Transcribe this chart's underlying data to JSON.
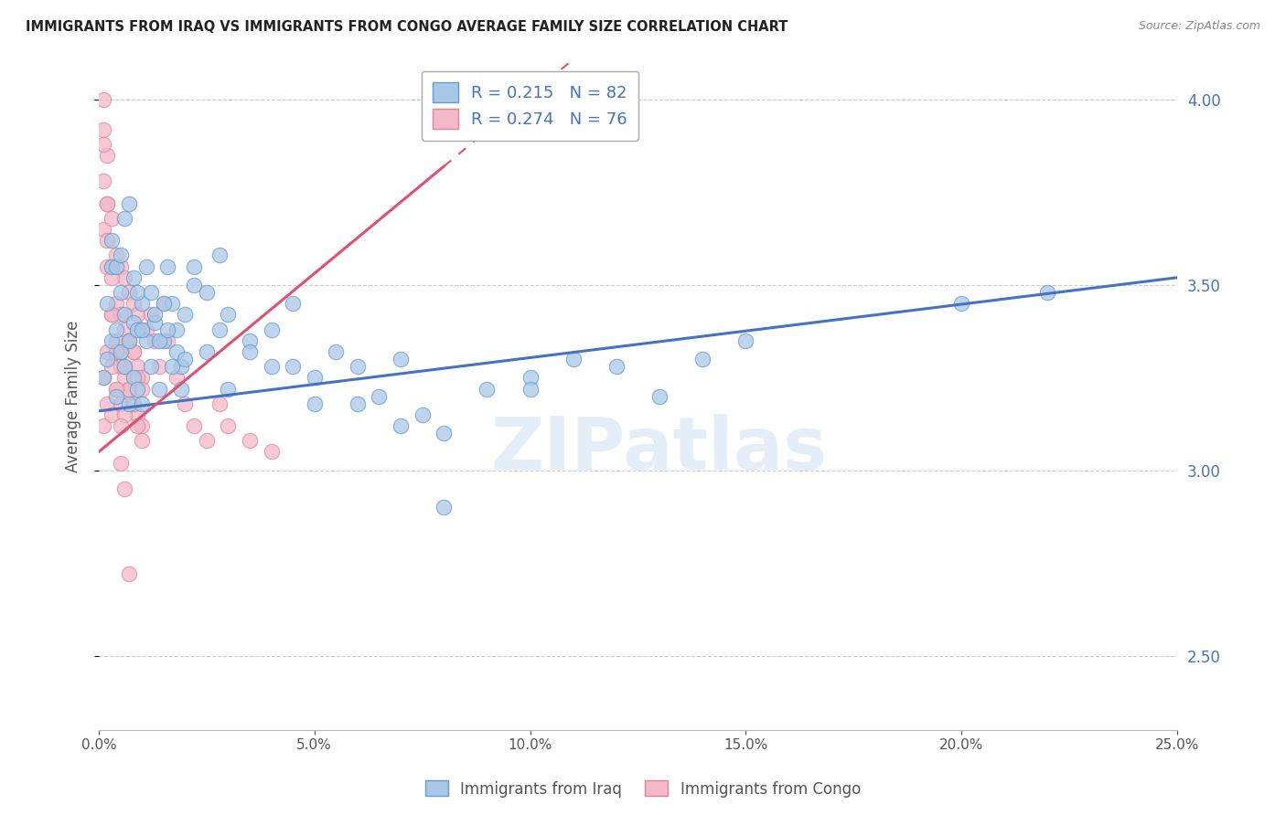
{
  "title": "IMMIGRANTS FROM IRAQ VS IMMIGRANTS FROM CONGO AVERAGE FAMILY SIZE CORRELATION CHART",
  "source": "Source: ZipAtlas.com",
  "ylabel": "Average Family Size",
  "xlim": [
    0.0,
    0.25
  ],
  "ylim": [
    2.3,
    4.1
  ],
  "right_yticks": [
    2.5,
    3.0,
    3.5,
    4.0
  ],
  "iraq_R": 0.215,
  "iraq_N": 82,
  "congo_R": 0.274,
  "congo_N": 76,
  "iraq_color": "#a8c8e8",
  "iraq_edge_color": "#6699cc",
  "iraq_line_color": "#4472c4",
  "congo_color": "#f4b8c8",
  "congo_edge_color": "#dd8899",
  "congo_line_color": "#e05070",
  "legend_label_iraq": "Immigrants from Iraq",
  "legend_label_congo": "Immigrants from Congo",
  "iraq_trend_x0": 0.0,
  "iraq_trend_y0": 3.16,
  "iraq_trend_x1": 0.25,
  "iraq_trend_y1": 3.52,
  "congo_trend_x0": 0.0,
  "congo_trend_y0": 3.05,
  "congo_trend_x1": 0.08,
  "congo_trend_y1": 3.82,
  "iraq_x": [
    0.001,
    0.002,
    0.002,
    0.003,
    0.003,
    0.004,
    0.004,
    0.005,
    0.005,
    0.006,
    0.006,
    0.007,
    0.007,
    0.008,
    0.008,
    0.009,
    0.009,
    0.01,
    0.01,
    0.011,
    0.012,
    0.013,
    0.014,
    0.015,
    0.016,
    0.017,
    0.018,
    0.019,
    0.02,
    0.022,
    0.025,
    0.028,
    0.03,
    0.035,
    0.04,
    0.045,
    0.05,
    0.055,
    0.06,
    0.065,
    0.07,
    0.075,
    0.08,
    0.09,
    0.1,
    0.11,
    0.12,
    0.13,
    0.14,
    0.15,
    0.003,
    0.004,
    0.005,
    0.006,
    0.007,
    0.008,
    0.009,
    0.01,
    0.011,
    0.012,
    0.013,
    0.014,
    0.015,
    0.016,
    0.017,
    0.018,
    0.019,
    0.02,
    0.022,
    0.025,
    0.028,
    0.03,
    0.035,
    0.04,
    0.045,
    0.05,
    0.06,
    0.07,
    0.08,
    0.1,
    0.22,
    0.2
  ],
  "iraq_y": [
    3.25,
    3.3,
    3.45,
    3.35,
    3.55,
    3.38,
    3.2,
    3.32,
    3.48,
    3.28,
    3.42,
    3.35,
    3.18,
    3.4,
    3.25,
    3.38,
    3.22,
    3.45,
    3.18,
    3.35,
    3.28,
    3.4,
    3.22,
    3.35,
    3.55,
    3.45,
    3.38,
    3.28,
    3.42,
    3.5,
    3.32,
    3.58,
    3.22,
    3.35,
    3.28,
    3.45,
    3.18,
    3.32,
    3.28,
    3.2,
    3.3,
    3.15,
    3.1,
    3.22,
    3.25,
    3.3,
    3.28,
    3.2,
    3.3,
    3.35,
    3.62,
    3.55,
    3.58,
    3.68,
    3.72,
    3.52,
    3.48,
    3.38,
    3.55,
    3.48,
    3.42,
    3.35,
    3.45,
    3.38,
    3.28,
    3.32,
    3.22,
    3.3,
    3.55,
    3.48,
    3.38,
    3.42,
    3.32,
    3.38,
    3.28,
    3.25,
    3.18,
    3.12,
    2.9,
    3.22,
    3.48,
    3.45
  ],
  "congo_x": [
    0.001,
    0.001,
    0.001,
    0.002,
    0.002,
    0.002,
    0.003,
    0.003,
    0.003,
    0.004,
    0.004,
    0.004,
    0.005,
    0.005,
    0.005,
    0.006,
    0.006,
    0.006,
    0.007,
    0.007,
    0.007,
    0.008,
    0.008,
    0.008,
    0.009,
    0.009,
    0.009,
    0.01,
    0.01,
    0.01,
    0.001,
    0.001,
    0.002,
    0.002,
    0.003,
    0.003,
    0.004,
    0.004,
    0.005,
    0.005,
    0.006,
    0.006,
    0.007,
    0.007,
    0.008,
    0.008,
    0.009,
    0.009,
    0.01,
    0.01,
    0.011,
    0.012,
    0.013,
    0.014,
    0.015,
    0.016,
    0.018,
    0.02,
    0.022,
    0.025,
    0.028,
    0.03,
    0.035,
    0.04,
    0.001,
    0.001,
    0.002,
    0.002,
    0.003,
    0.003,
    0.004,
    0.004,
    0.005,
    0.005,
    0.006,
    0.007
  ],
  "congo_y": [
    3.92,
    3.78,
    3.65,
    3.85,
    3.72,
    3.55,
    3.68,
    3.55,
    3.42,
    3.58,
    3.45,
    3.32,
    3.55,
    3.42,
    3.28,
    3.52,
    3.38,
    3.25,
    3.48,
    3.35,
    3.22,
    3.45,
    3.32,
    3.18,
    3.42,
    3.28,
    3.15,
    3.38,
    3.25,
    3.12,
    3.25,
    3.12,
    3.32,
    3.18,
    3.28,
    3.15,
    3.35,
    3.22,
    3.32,
    3.18,
    3.28,
    3.15,
    3.35,
    3.22,
    3.32,
    3.18,
    3.25,
    3.12,
    3.22,
    3.08,
    3.38,
    3.42,
    3.35,
    3.28,
    3.45,
    3.35,
    3.25,
    3.18,
    3.12,
    3.08,
    3.18,
    3.12,
    3.08,
    3.05,
    4.0,
    3.88,
    3.72,
    3.62,
    3.52,
    3.42,
    3.32,
    3.22,
    3.12,
    3.02,
    2.95,
    2.72
  ]
}
